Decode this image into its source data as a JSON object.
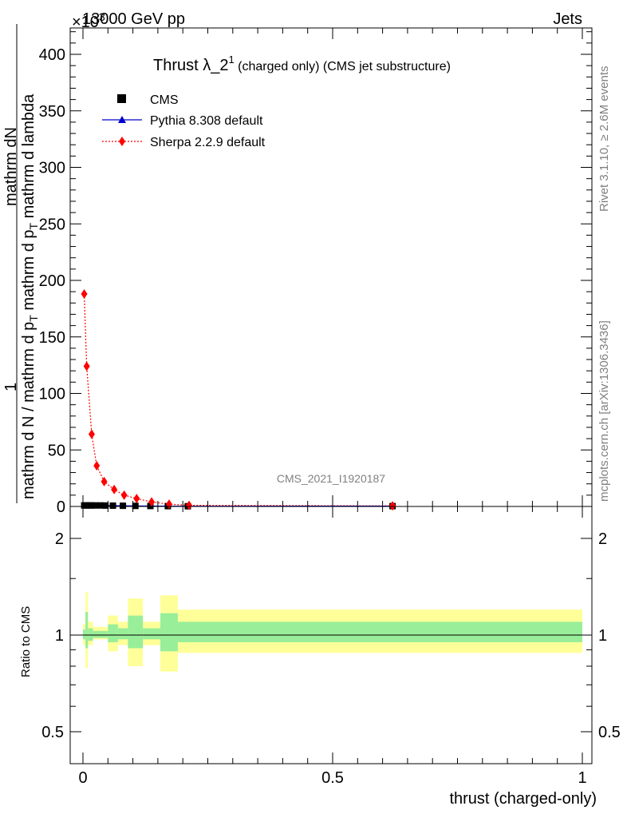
{
  "header": {
    "left": "13000 GeV pp",
    "right": "Jets",
    "exponent_label": "×10",
    "exponent_value": "3"
  },
  "side_texts": {
    "rivet": "Rivet 3.1.10, ≥ 2.6M events",
    "mcplots": "mcplots.cern.ch [arXiv:1306.3436]"
  },
  "watermark": "CMS_2021_I1920187",
  "chart_data": [
    {
      "type": "line",
      "title_main": "Thrust λ_2",
      "title_sup": "1",
      "title_rest": " (charged only) (CMS jet substructure)",
      "ylabel_top": "mathrm dN",
      "ylabel_numerator": "1",
      "ylabel_main": "mathrm d N / mathrm d p",
      "ylabel_mid": "T",
      "ylabel_rest": " mathrm d p",
      "ylabel_tail": " mathrm d lambda",
      "xlim": [
        0,
        1
      ],
      "ylim": [
        0,
        425
      ],
      "yticks": [
        0,
        50,
        100,
        150,
        200,
        250,
        300,
        350,
        400
      ],
      "legend": [
        {
          "name": "CMS",
          "color": "#000000",
          "marker": "square"
        },
        {
          "name": "Pythia 8.308 default",
          "color": "#0000cc",
          "marker": "triangle"
        },
        {
          "name": "Sherpa 2.2.9 default",
          "color": "#ff0000",
          "marker": "diamond"
        }
      ],
      "series": [
        {
          "name": "CMS",
          "x": [
            0.0025,
            0.0075,
            0.0125,
            0.0175,
            0.025,
            0.035,
            0.045,
            0.06,
            0.08,
            0.105,
            0.135,
            0.17,
            0.21,
            0.62
          ],
          "y": [
            0.9,
            0.9,
            0.9,
            0.9,
            0.9,
            0.9,
            0.8,
            0.7,
            0.6,
            0.5,
            0.4,
            0.3,
            0.2,
            0.3
          ]
        },
        {
          "name": "Pythia 8.308 default",
          "x": [
            0.0025,
            0.0075,
            0.0125,
            0.0175,
            0.025,
            0.035,
            0.045,
            0.06,
            0.08,
            0.105,
            0.135,
            0.17,
            0.21,
            0.62
          ],
          "y": [
            0.9,
            0.9,
            0.9,
            0.9,
            0.9,
            0.9,
            0.8,
            0.7,
            0.6,
            0.5,
            0.4,
            0.3,
            0.2,
            0.3
          ]
        },
        {
          "name": "Sherpa 2.2.9 default",
          "x": [
            0.0025,
            0.0075,
            0.0175,
            0.0275,
            0.0425,
            0.0625,
            0.0825,
            0.1075,
            0.1375,
            0.1725,
            0.2125,
            0.62
          ],
          "y": [
            188,
            124,
            64,
            36,
            22,
            15,
            10,
            7,
            4,
            2,
            1,
            0.5
          ]
        }
      ]
    },
    {
      "type": "area",
      "ylabel": "Ratio to CMS",
      "xlabel": "thrust (charged-only)",
      "xlim": [
        0,
        1
      ],
      "ylim": [
        0.4,
        2.4
      ],
      "yticks": [
        0.5,
        1,
        2
      ],
      "xticks": [
        0,
        0.5,
        1
      ],
      "bins": [
        {
          "x0": 0.0,
          "x1": 0.005,
          "yellow": [
            0.93,
            1.08
          ],
          "green": [
            0.97,
            1.04
          ]
        },
        {
          "x0": 0.005,
          "x1": 0.01,
          "yellow": [
            0.79,
            1.36
          ],
          "green": [
            0.91,
            1.18
          ]
        },
        {
          "x0": 0.01,
          "x1": 0.02,
          "yellow": [
            0.93,
            1.1
          ],
          "green": [
            0.96,
            1.05
          ]
        },
        {
          "x0": 0.02,
          "x1": 0.05,
          "yellow": [
            0.97,
            1.06
          ],
          "green": [
            0.98,
            1.03
          ]
        },
        {
          "x0": 0.05,
          "x1": 0.07,
          "yellow": [
            0.89,
            1.15
          ],
          "green": [
            0.95,
            1.08
          ]
        },
        {
          "x0": 0.07,
          "x1": 0.09,
          "yellow": [
            0.93,
            1.1
          ],
          "green": [
            0.97,
            1.05
          ]
        },
        {
          "x0": 0.09,
          "x1": 0.12,
          "yellow": [
            0.8,
            1.3
          ],
          "green": [
            0.91,
            1.15
          ]
        },
        {
          "x0": 0.12,
          "x1": 0.155,
          "yellow": [
            0.93,
            1.1
          ],
          "green": [
            0.97,
            1.05
          ]
        },
        {
          "x0": 0.155,
          "x1": 0.19,
          "yellow": [
            0.77,
            1.33
          ],
          "green": [
            0.89,
            1.17
          ]
        },
        {
          "x0": 0.19,
          "x1": 1.0,
          "yellow": [
            0.88,
            1.2
          ],
          "green": [
            0.95,
            1.1
          ]
        }
      ]
    }
  ]
}
